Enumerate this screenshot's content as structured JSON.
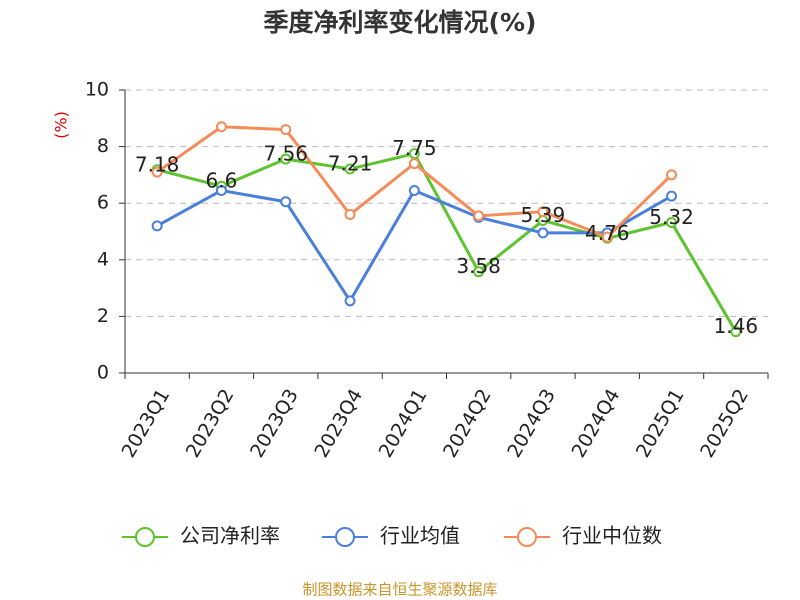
{
  "chart_data": {
    "type": "line",
    "title": "季度净利率变化情况(%)",
    "y_label": "(%)",
    "categories": [
      "2023Q1",
      "2023Q2",
      "2023Q3",
      "2023Q4",
      "2024Q1",
      "2024Q2",
      "2024Q3",
      "2024Q4",
      "2025Q1",
      "2025Q2"
    ],
    "series": [
      {
        "name": "公司净利率",
        "color": "#5dc42d",
        "show_labels": true,
        "values": [
          7.18,
          6.6,
          7.56,
          7.21,
          7.75,
          3.58,
          5.39,
          4.76,
          5.32,
          1.46
        ]
      },
      {
        "name": "行业均值",
        "color": "#4a7fdc",
        "show_labels": false,
        "values": [
          5.2,
          6.45,
          6.05,
          2.55,
          6.45,
          5.5,
          4.95,
          4.95,
          6.25,
          null
        ]
      },
      {
        "name": "行业中位数",
        "color": "#f48c5a",
        "show_labels": false,
        "values": [
          7.1,
          8.7,
          8.6,
          5.6,
          7.4,
          5.55,
          5.7,
          4.8,
          7.0,
          null
        ]
      }
    ],
    "ylim": [
      0,
      10
    ],
    "yticks": [
      0,
      2,
      4,
      6,
      8,
      10
    ],
    "grid": true,
    "source": "制图数据来自恒生聚源数据库"
  }
}
